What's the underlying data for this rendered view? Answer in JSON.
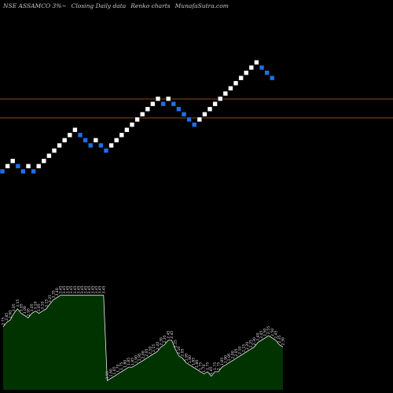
{
  "header": {
    "symbol": "NSE ASSAMCO 3%~",
    "subtitle": "Closing Daily data",
    "chart_kind": "Renko charts",
    "site": "MunafaSutra.com"
  },
  "colors": {
    "up_brick": "#ffffff",
    "down_brick": "#1e6fe6",
    "hline": "#b8661e",
    "volume_fill": "#003300",
    "volume_line": "#eeeeee",
    "background": "#000000"
  },
  "chart_data": [
    {
      "type": "renko",
      "title": "",
      "bricks": [
        {
          "dir": "down"
        },
        {
          "dir": "up"
        },
        {
          "dir": "up"
        },
        {
          "dir": "down"
        },
        {
          "dir": "down"
        },
        {
          "dir": "up"
        },
        {
          "dir": "down"
        },
        {
          "dir": "up"
        },
        {
          "dir": "up"
        },
        {
          "dir": "up"
        },
        {
          "dir": "up"
        },
        {
          "dir": "up"
        },
        {
          "dir": "up"
        },
        {
          "dir": "up"
        },
        {
          "dir": "up"
        },
        {
          "dir": "down"
        },
        {
          "dir": "down"
        },
        {
          "dir": "down"
        },
        {
          "dir": "up"
        },
        {
          "dir": "down"
        },
        {
          "dir": "down"
        },
        {
          "dir": "up"
        },
        {
          "dir": "up"
        },
        {
          "dir": "up"
        },
        {
          "dir": "up"
        },
        {
          "dir": "up"
        },
        {
          "dir": "up"
        },
        {
          "dir": "up"
        },
        {
          "dir": "up"
        },
        {
          "dir": "up"
        },
        {
          "dir": "up"
        },
        {
          "dir": "down"
        },
        {
          "dir": "up"
        },
        {
          "dir": "down"
        },
        {
          "dir": "down"
        },
        {
          "dir": "down"
        },
        {
          "dir": "down"
        },
        {
          "dir": "down"
        },
        {
          "dir": "up"
        },
        {
          "dir": "up"
        },
        {
          "dir": "up"
        },
        {
          "dir": "up"
        },
        {
          "dir": "up"
        },
        {
          "dir": "up"
        },
        {
          "dir": "up"
        },
        {
          "dir": "up"
        },
        {
          "dir": "up"
        },
        {
          "dir": "up"
        },
        {
          "dir": "up"
        },
        {
          "dir": "up"
        },
        {
          "dir": "down"
        },
        {
          "dir": "down"
        },
        {
          "dir": "down"
        }
      ],
      "horizontal_lines": 2
    },
    {
      "type": "area",
      "title": "",
      "values": [
        2.75,
        2.85,
        2.9,
        3.05,
        3.15,
        3.05,
        3.0,
        2.95,
        3.05,
        3.1,
        3.05,
        3.1,
        3.15,
        3.25,
        3.35,
        3.4,
        3.45,
        3.45,
        3.45,
        3.45,
        3.45,
        3.45,
        3.45,
        3.45,
        3.45,
        3.45,
        3.45,
        3.45,
        3.45,
        1.55,
        1.6,
        1.65,
        1.7,
        1.75,
        1.8,
        1.85,
        1.85,
        1.9,
        1.95,
        2.0,
        2.05,
        2.1,
        2.15,
        2.2,
        2.3,
        2.35,
        2.45,
        2.45,
        2.25,
        2.1,
        2.05,
        1.95,
        1.9,
        1.85,
        1.8,
        1.75,
        1.7,
        1.75,
        1.65,
        1.75,
        1.75,
        1.85,
        1.9,
        1.95,
        2.0,
        2.05,
        2.1,
        2.15,
        2.2,
        2.25,
        2.3,
        2.4,
        2.45,
        2.5,
        2.55,
        2.5,
        2.45,
        2.35,
        2.3
      ],
      "labels": [
        "2.75",
        "2.85",
        "2.90",
        "3.05",
        "3.15",
        "3.05",
        "3.00",
        "2.95",
        "3.05",
        "3.10",
        "3.05",
        "3.10",
        "3.15",
        "3.25",
        "3.35",
        "3.40",
        "3.45",
        "3.45",
        "3.45",
        "3.45",
        "3.45",
        "3.45",
        "3.45",
        "3.45",
        "3.45",
        "3.45",
        "3.45",
        "3.45",
        "3.45",
        "1.55",
        "1.60",
        "1.65",
        "1.70",
        "1.75",
        "1.80",
        "1.85",
        "1.85",
        "1.90",
        "1.95",
        "2.00",
        "2.05",
        "2.10",
        "2.15",
        "2.20",
        "2.30",
        "2.35",
        "2.45",
        "2.45",
        "2.25",
        "2.10",
        "2.05",
        "1.95",
        "1.90",
        "1.85",
        "1.80",
        "1.75",
        "1.70",
        "1.75",
        "1.65",
        "1.75",
        "1.75",
        "1.85",
        "1.90",
        "1.95",
        "2.00",
        "2.05",
        "2.10",
        "2.15",
        "2.20",
        "2.25",
        "2.30",
        "2.40",
        "2.45",
        "2.50",
        "2.55",
        "2.50",
        "2.45",
        "2.35",
        "2.30"
      ]
    }
  ]
}
